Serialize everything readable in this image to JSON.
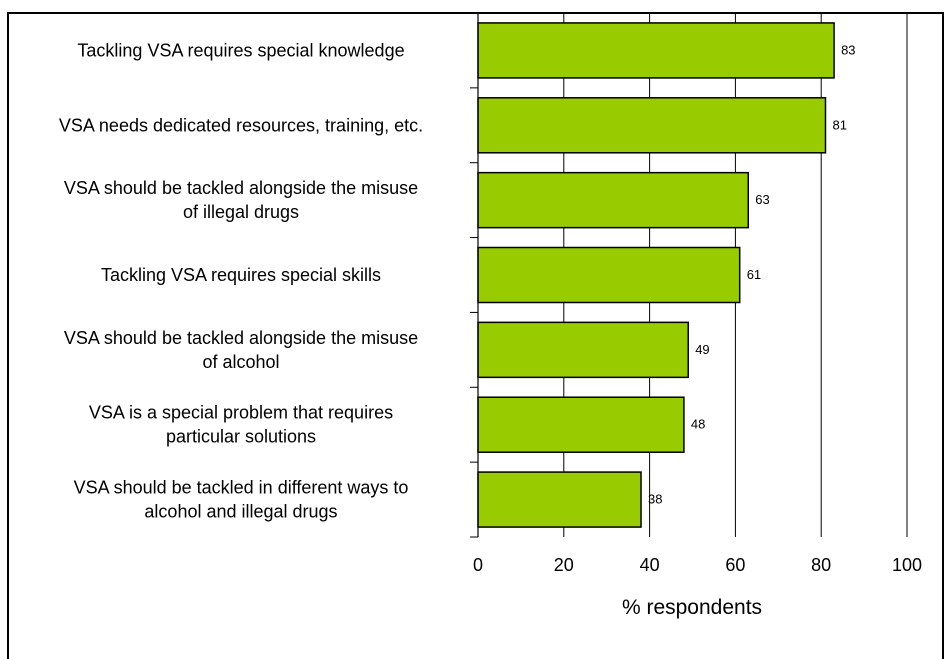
{
  "chart_data": {
    "type": "bar",
    "orientation": "horizontal",
    "title": "",
    "xlabel": "% respondents",
    "ylabel": "",
    "xlim": [
      0,
      100
    ],
    "xticks": [
      0,
      20,
      40,
      60,
      80,
      100
    ],
    "grid": "vertical",
    "legend": "none",
    "categories": [
      [
        "Tackling VSA requires special knowledge"
      ],
      [
        "VSA needs dedicated resources, training, etc."
      ],
      [
        "VSA should be tackled alongside the misuse",
        "of illegal drugs"
      ],
      [
        "Tackling VSA requires special skills"
      ],
      [
        "VSA should be tackled alongside the misuse",
        "of alcohol"
      ],
      [
        "VSA is a special problem that requires",
        "particular solutions"
      ],
      [
        "VSA should be tackled in different ways to",
        "alcohol and illegal drugs"
      ]
    ],
    "values": [
      83,
      81,
      63,
      61,
      49,
      48,
      38
    ],
    "colors": {
      "bar": "#99cc00",
      "bar_border": "#000000",
      "grid": "#000000"
    }
  }
}
